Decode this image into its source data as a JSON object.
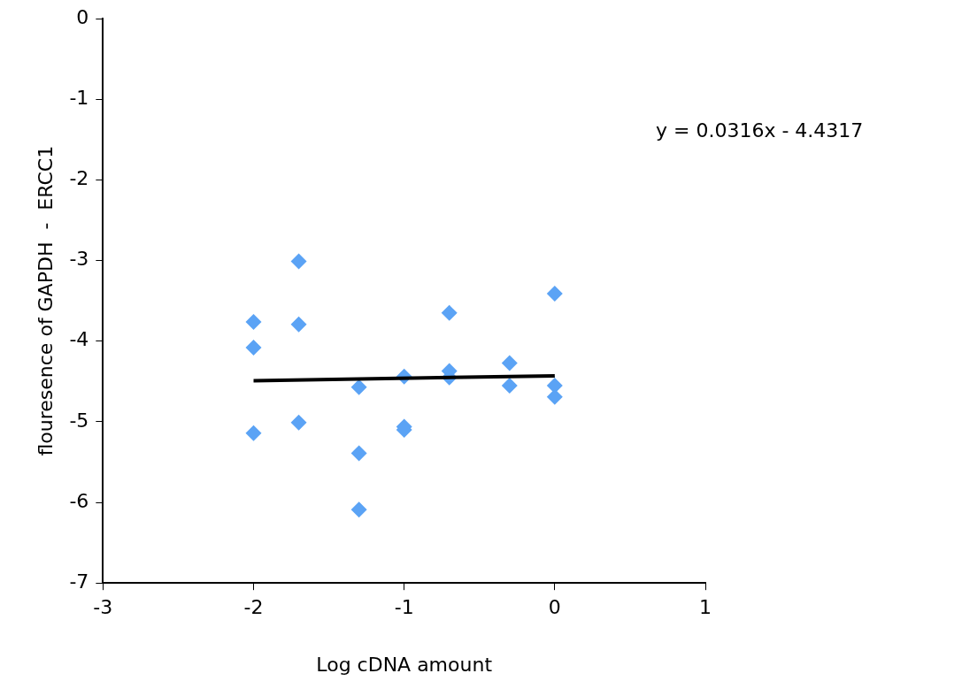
{
  "chart_data": {
    "type": "scatter",
    "xlabel": "Log cDNA amount",
    "ylabel": "flouresence of GAPDH  -  ERCC1",
    "xlim": [
      -3,
      1
    ],
    "xticks": [
      -3,
      -2,
      -1,
      0,
      1
    ],
    "ylim": [
      -7,
      0
    ],
    "yticks": [
      -7,
      -6,
      -5,
      -4,
      -3,
      -2,
      -1,
      0
    ],
    "grid": false,
    "legend": false,
    "series": [
      {
        "marker": "diamond",
        "color": "#5ba3f5",
        "x": [
          -2,
          -2,
          -2,
          -1.7,
          -1.7,
          -1.7,
          -1.3,
          -1.3,
          -1.3,
          -1,
          -1,
          -1,
          -0.7,
          -0.7,
          -0.7,
          -0.3,
          -0.3,
          0,
          0,
          0
        ],
        "values": [
          -3.76,
          -4.08,
          -5.14,
          -3.01,
          -3.79,
          -5.01,
          -4.57,
          -5.39,
          -6.09,
          -4.44,
          -5.06,
          -5.1,
          -3.65,
          -4.37,
          -4.45,
          -4.27,
          -4.55,
          -3.41,
          -4.55,
          -4.69
        ]
      },
      {
        "type": "line",
        "marker": "none",
        "color": "#000000",
        "x": [
          -2,
          0
        ],
        "values": [
          -4.49,
          -4.43
        ]
      }
    ],
    "annotations": [
      "y = 0.0316x - 4.4317"
    ]
  }
}
